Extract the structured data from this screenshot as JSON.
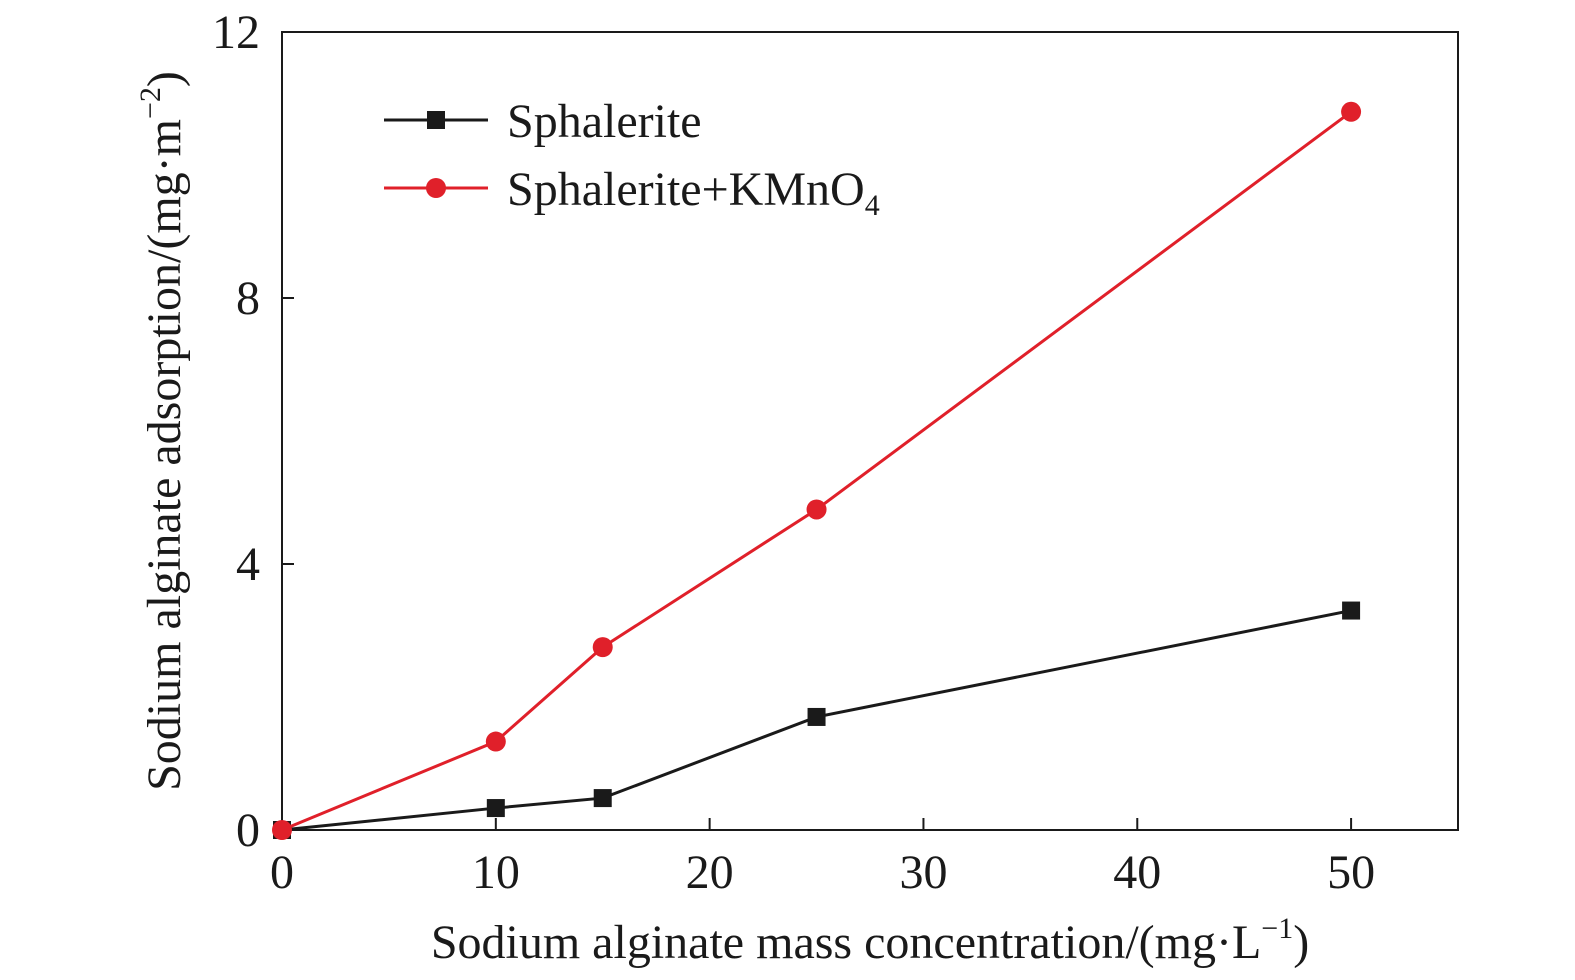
{
  "chart_data": {
    "type": "line",
    "xlabel": "Sodium alginate mass concentration/(mg·L",
    "xlabel_sup": "−1",
    "xlabel_end": ")",
    "ylabel": "Sodium alginate adsorption/(mg·m",
    "ylabel_sup": "−2",
    "ylabel_end": ")",
    "xlim": [
      0,
      55
    ],
    "ylim": [
      0,
      12
    ],
    "xticks": [
      0,
      10,
      20,
      30,
      40,
      50
    ],
    "yticks": [
      0,
      4,
      8,
      12
    ],
    "grid": false,
    "legend_position": "top-left",
    "series": [
      {
        "name": "Sphalerite",
        "color": "#1a1a1a",
        "marker": "square",
        "x": [
          0,
          10,
          15,
          25,
          50
        ],
        "y": [
          0,
          0.33,
          0.48,
          1.7,
          3.3
        ]
      },
      {
        "name": "Sphalerite+KMnO",
        "name_sub": "4",
        "color": "#e0202a",
        "marker": "circle",
        "x": [
          0,
          10,
          15,
          25,
          50
        ],
        "y": [
          0,
          1.33,
          2.75,
          4.82,
          10.8
        ]
      }
    ]
  }
}
